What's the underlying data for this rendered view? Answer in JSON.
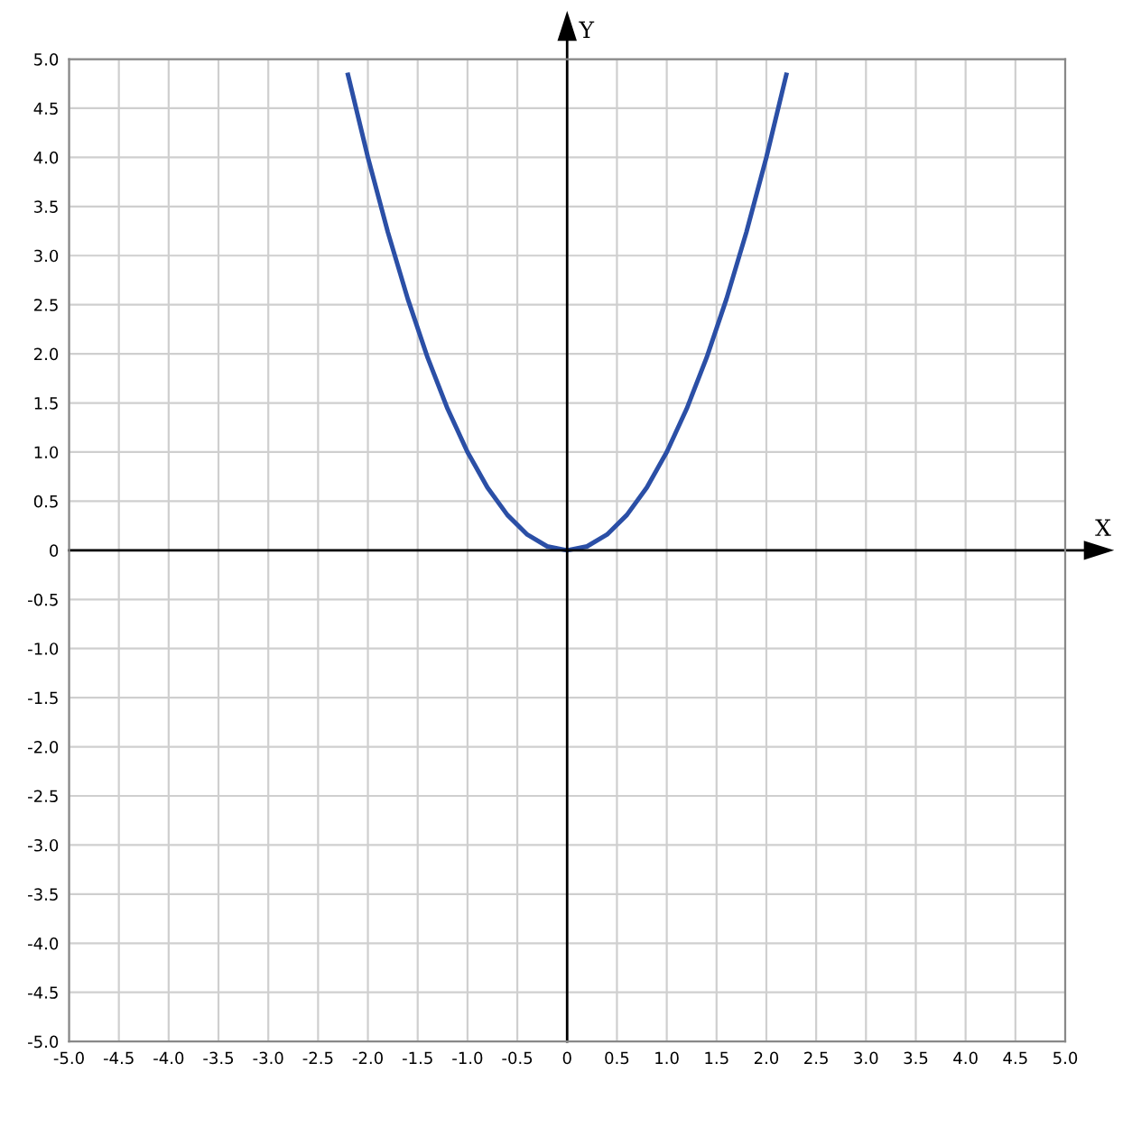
{
  "chart_data": {
    "type": "line",
    "xlabel": "X",
    "ylabel": "Y",
    "x": [
      -2.2,
      -2.0,
      -1.8,
      -1.6,
      -1.4,
      -1.2,
      -1.0,
      -0.8,
      -0.6,
      -0.4,
      -0.2,
      0,
      0.2,
      0.4,
      0.6,
      0.8,
      1.0,
      1.2,
      1.4,
      1.6,
      1.8,
      2.0,
      2.2
    ],
    "series": [
      {
        "color": "#2b4fa6",
        "values": [
          4.84,
          4.0,
          3.24,
          2.56,
          1.96,
          1.44,
          1.0,
          0.64,
          0.36,
          0.16,
          0.04,
          0,
          0.04,
          0.16,
          0.36,
          0.64,
          1.0,
          1.44,
          1.96,
          2.56,
          3.24,
          4.0,
          4.84
        ]
      }
    ],
    "xlim": [
      -5,
      5
    ],
    "ylim": [
      -5,
      5
    ],
    "xticks": [
      {
        "value": -5,
        "label": "-5.0"
      },
      {
        "value": -4.5,
        "label": "-4.5"
      },
      {
        "value": -4,
        "label": "-4.0"
      },
      {
        "value": -3.5,
        "label": "-3.5"
      },
      {
        "value": -3,
        "label": "-3.0"
      },
      {
        "value": -2.5,
        "label": "-2.5"
      },
      {
        "value": -2,
        "label": "-2.0"
      },
      {
        "value": -1.5,
        "label": "-1.5"
      },
      {
        "value": -1,
        "label": "-1.0"
      },
      {
        "value": -0.5,
        "label": "-0.5"
      },
      0,
      0.5,
      {
        "value": 1,
        "label": "1.0"
      },
      1.5,
      {
        "value": 2,
        "label": "2.0"
      },
      2.5,
      {
        "value": 3,
        "label": "3.0"
      },
      3.5,
      {
        "value": 4,
        "label": "4.0"
      },
      4.5,
      {
        "value": 5,
        "label": "5.0"
      }
    ],
    "yticks": [
      {
        "value": -5,
        "label": "-5.0"
      },
      {
        "value": -4.5,
        "label": "-4.5"
      },
      {
        "value": -4,
        "label": "-4.0"
      },
      {
        "value": -3.5,
        "label": "-3.5"
      },
      {
        "value": -3,
        "label": "-3.0"
      },
      {
        "value": -2.5,
        "label": "-2.5"
      },
      {
        "value": -2,
        "label": "-2.0"
      },
      {
        "value": -1.5,
        "label": "-1.5"
      },
      {
        "value": -1,
        "label": "-1.0"
      },
      {
        "value": -0.5,
        "label": "-0.5"
      },
      0,
      0.5,
      {
        "value": 1,
        "label": "1.0"
      },
      1.5,
      {
        "value": 2,
        "label": "2.0"
      },
      2.5,
      {
        "value": 3,
        "label": "3.0"
      },
      3.5,
      {
        "value": 4,
        "label": "4.0"
      },
      4.5,
      {
        "value": 5,
        "label": "5.0"
      }
    ],
    "grid": true,
    "marker": "none",
    "line_style": "solid"
  }
}
